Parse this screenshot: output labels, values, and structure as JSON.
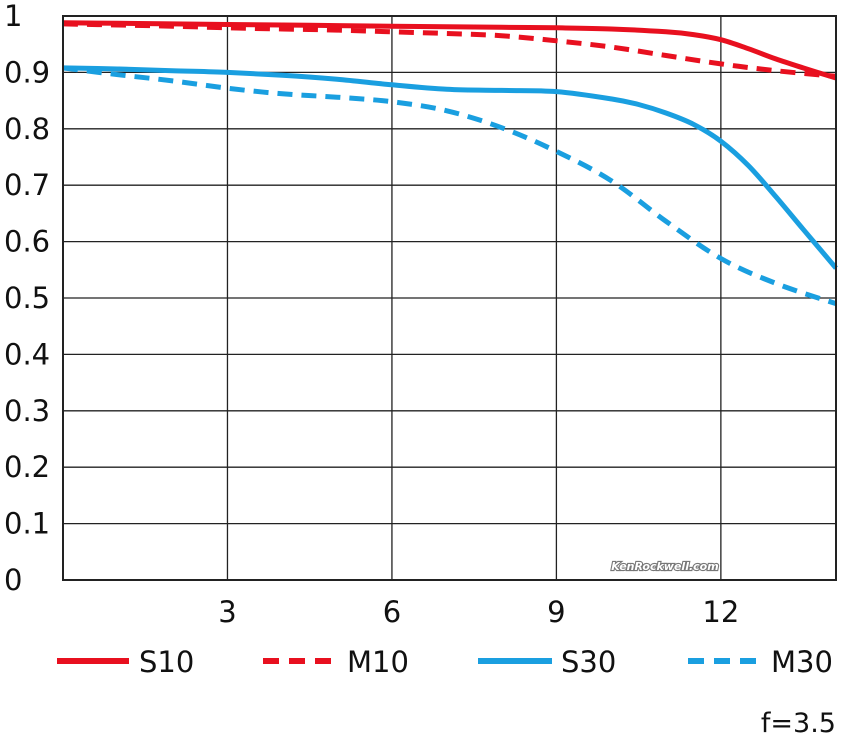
{
  "chart_data": {
    "type": "line",
    "x_ticks": [
      3,
      6,
      9,
      12
    ],
    "y_ticks": [
      "0",
      "0.1",
      "0.2",
      "0.3",
      "0.4",
      "0.5",
      "0.6",
      "0.7",
      "0.8",
      "0.9",
      "1"
    ],
    "xlim": [
      0,
      14.1
    ],
    "ylim": [
      0,
      1
    ],
    "grid": true,
    "legend_position": "bottom",
    "series": [
      {
        "name": "S10",
        "color": "#e8101f",
        "style": "solid",
        "x": [
          0,
          1,
          2,
          3,
          4,
          5,
          6,
          7,
          8,
          9,
          10,
          11,
          11.5,
          12,
          12.5,
          13,
          13.5,
          14.1
        ],
        "y": [
          0.988,
          0.987,
          0.986,
          0.985,
          0.984,
          0.983,
          0.982,
          0.981,
          0.98,
          0.979,
          0.977,
          0.972,
          0.967,
          0.958,
          0.942,
          0.924,
          0.908,
          0.89
        ]
      },
      {
        "name": "M10",
        "color": "#e8101f",
        "style": "dashed",
        "x": [
          0,
          1,
          2,
          3,
          4,
          5,
          6,
          7,
          8,
          9,
          10,
          11,
          12,
          13,
          14.1
        ],
        "y": [
          0.986,
          0.984,
          0.982,
          0.979,
          0.977,
          0.975,
          0.972,
          0.969,
          0.965,
          0.956,
          0.945,
          0.93,
          0.915,
          0.903,
          0.893
        ]
      },
      {
        "name": "S30",
        "color": "#1a9fe0",
        "style": "solid",
        "x": [
          0,
          1,
          2,
          3,
          4,
          5,
          6,
          7,
          8,
          9,
          10,
          10.5,
          11,
          11.5,
          12,
          12.5,
          13,
          13.5,
          14.1
        ],
        "y": [
          0.908,
          0.906,
          0.903,
          0.9,
          0.895,
          0.888,
          0.878,
          0.87,
          0.868,
          0.866,
          0.853,
          0.843,
          0.828,
          0.808,
          0.778,
          0.735,
          0.68,
          0.622,
          0.553
        ]
      },
      {
        "name": "M30",
        "color": "#1a9fe0",
        "style": "dashed",
        "x": [
          0,
          1,
          2,
          3,
          4,
          5,
          6,
          7,
          8,
          9,
          10,
          11,
          12,
          13,
          14.1
        ],
        "y": [
          0.908,
          0.896,
          0.885,
          0.872,
          0.862,
          0.856,
          0.848,
          0.832,
          0.802,
          0.76,
          0.708,
          0.636,
          0.57,
          0.526,
          0.49
        ]
      }
    ],
    "aperture_label": "f=3.5",
    "watermark": "KenRockwell.com"
  }
}
